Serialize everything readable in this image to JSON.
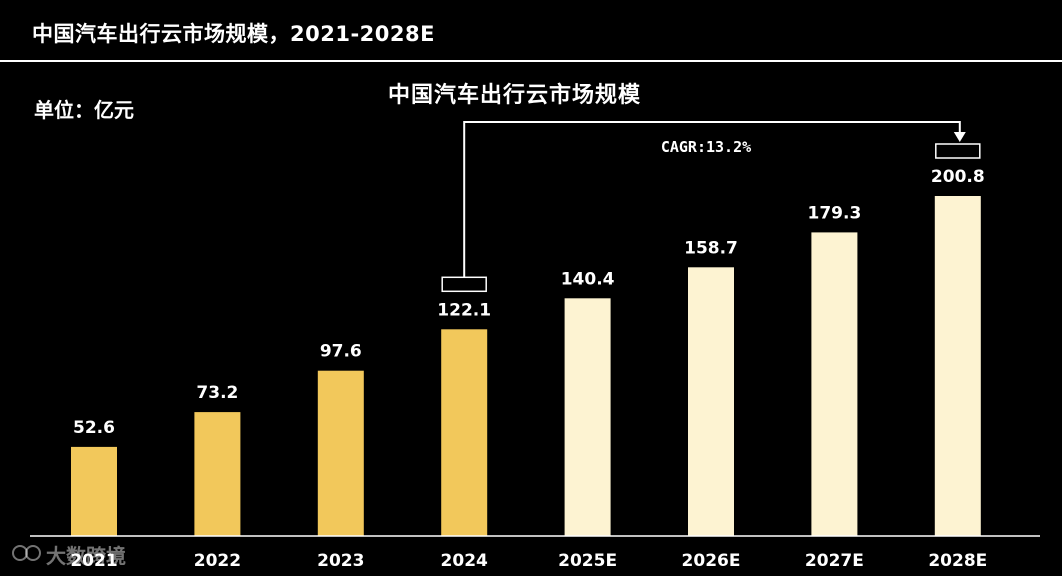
{
  "header": {
    "title": "中国汽车出行云市场规模，2021-2028E",
    "unit": "单位：亿元"
  },
  "watermark": {
    "text": "大数跨境"
  },
  "chart_data": {
    "type": "bar",
    "title": "中国汽车出行云市场规模",
    "xlabel": "",
    "ylabel": "",
    "categories": [
      "2021",
      "2022",
      "2023",
      "2024",
      "2025E",
      "2026E",
      "2027E",
      "2028E"
    ],
    "values": [
      52.6,
      73.2,
      97.6,
      122.1,
      140.4,
      158.7,
      179.3,
      200.8
    ],
    "value_labels": [
      "52.6",
      "73.2",
      "97.6",
      "122.1",
      "140.4",
      "158.7",
      "179.3",
      "200.8"
    ],
    "ylim": [
      0,
      200.8
    ],
    "grid": false,
    "colors": {
      "actual": "#f2c85b",
      "forecast": "#fdf3d2",
      "background": "#000000",
      "text": "#ffffff"
    },
    "forecast_start_index": 4,
    "annotation": {
      "text": "CAGR:13.2%",
      "from_category": "2024",
      "to_category": "2028E"
    }
  }
}
